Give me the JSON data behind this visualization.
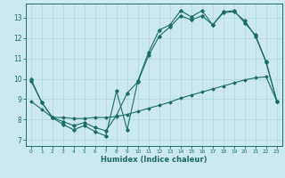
{
  "xlabel": "Humidex (Indice chaleur)",
  "xlim": [
    -0.5,
    23.5
  ],
  "ylim": [
    6.7,
    13.7
  ],
  "yticks": [
    7,
    8,
    9,
    10,
    11,
    12,
    13
  ],
  "xticks": [
    0,
    1,
    2,
    3,
    4,
    5,
    6,
    7,
    8,
    9,
    10,
    11,
    12,
    13,
    14,
    15,
    16,
    17,
    18,
    19,
    20,
    21,
    22,
    23
  ],
  "bg_color": "#cce9ef",
  "grid_color": "#b0d4db",
  "line_color": "#1a6e64",
  "line1_x": [
    0,
    1,
    2,
    3,
    4,
    5,
    6,
    7,
    8,
    9,
    10,
    11,
    12,
    13,
    14,
    15,
    16,
    17,
    18,
    19,
    20,
    21,
    22,
    23
  ],
  "line1_y": [
    10.0,
    8.85,
    8.1,
    7.75,
    7.5,
    7.7,
    7.4,
    7.2,
    9.4,
    7.5,
    9.9,
    11.3,
    12.4,
    12.65,
    13.35,
    13.05,
    13.35,
    12.65,
    13.3,
    13.35,
    12.75,
    12.15,
    10.85,
    8.9
  ],
  "line2_x": [
    0,
    1,
    2,
    3,
    4,
    5,
    6,
    7,
    8,
    9,
    10,
    11,
    12,
    13,
    14,
    15,
    16,
    17,
    18,
    19,
    20,
    21,
    22,
    23
  ],
  "line2_y": [
    9.9,
    8.85,
    8.1,
    7.9,
    7.7,
    7.85,
    7.6,
    7.45,
    8.2,
    9.3,
    9.85,
    11.15,
    12.1,
    12.55,
    13.1,
    12.9,
    13.1,
    12.65,
    13.25,
    13.3,
    12.85,
    12.1,
    10.8,
    8.9
  ],
  "line3_x": [
    0,
    1,
    2,
    3,
    4,
    5,
    6,
    7,
    8,
    9,
    10,
    11,
    12,
    13,
    14,
    15,
    16,
    17,
    18,
    19,
    20,
    21,
    22,
    23
  ],
  "line3_y": [
    8.9,
    8.5,
    8.1,
    8.1,
    8.05,
    8.05,
    8.1,
    8.1,
    8.15,
    8.25,
    8.4,
    8.55,
    8.7,
    8.85,
    9.05,
    9.2,
    9.35,
    9.5,
    9.65,
    9.8,
    9.95,
    10.05,
    10.1,
    8.9
  ]
}
